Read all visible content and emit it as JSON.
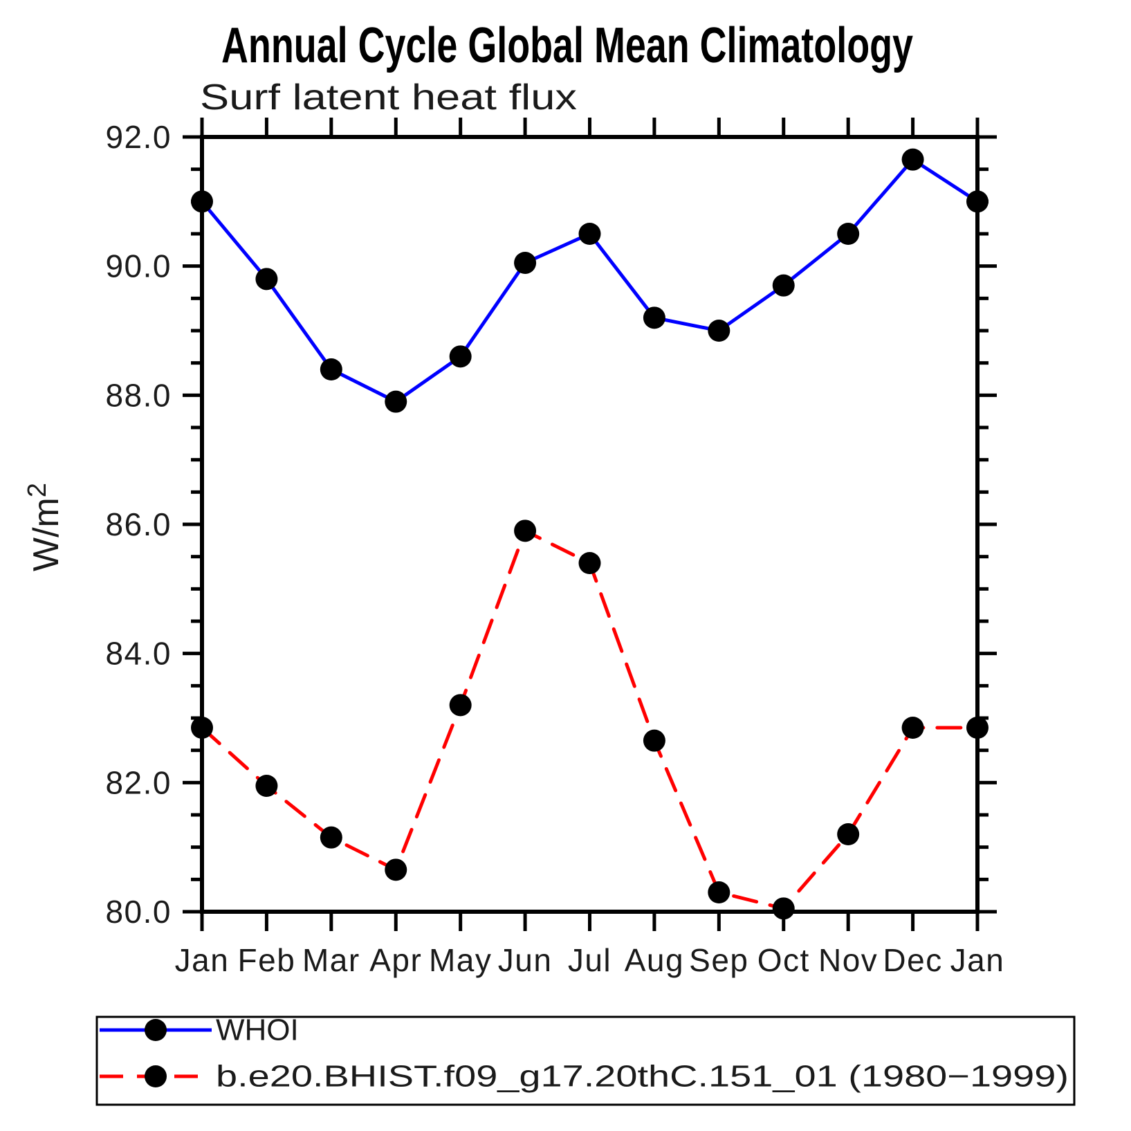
{
  "title": "Annual Cycle Global Mean Climatology",
  "subtitle": "Surf latent heat flux",
  "y_axis": {
    "label": "W/m",
    "label_superscript": "2",
    "tick_labels": [
      "92.0",
      "90.0",
      "88.0",
      "86.0",
      "84.0",
      "82.0",
      "80.0"
    ]
  },
  "x_axis": {
    "tick_labels": [
      "Jan",
      "Feb",
      "Mar",
      "Apr",
      "May",
      "Jun",
      "Jul",
      "Aug",
      "Sep",
      "Oct",
      "Nov",
      "Dec",
      "Jan"
    ]
  },
  "colors": {
    "whoi_line": "#0000ff",
    "model_line": "#ff0000",
    "marker": "#000000",
    "axis": "#000000"
  },
  "chart_data": {
    "type": "line",
    "title": "Annual Cycle Global Mean Climatology",
    "subtitle": "Surf latent heat flux",
    "ylabel": "W/m²",
    "xlabel": "",
    "categories": [
      "Jan",
      "Feb",
      "Mar",
      "Apr",
      "May",
      "Jun",
      "Jul",
      "Aug",
      "Sep",
      "Oct",
      "Nov",
      "Dec",
      "Jan"
    ],
    "series": [
      {
        "name": "WHOI",
        "color": "#0000ff",
        "line_style": "solid",
        "marker": "filled-circle",
        "marker_color": "#000000",
        "values": [
          91.0,
          89.8,
          88.4,
          87.9,
          88.6,
          90.05,
          90.5,
          89.2,
          89.0,
          89.7,
          90.5,
          91.65,
          91.0
        ]
      },
      {
        "name": "b.e20.BHIST.f09_g17.20thC.151_01 (1980−1999)",
        "color": "#ff0000",
        "line_style": "dashed",
        "marker": "filled-circle",
        "marker_color": "#000000",
        "values": [
          82.85,
          81.95,
          81.15,
          80.65,
          83.2,
          85.9,
          85.4,
          82.65,
          80.3,
          80.05,
          81.2,
          82.85,
          82.85
        ]
      }
    ],
    "ylim": [
      80.0,
      92.0
    ],
    "ytick_major_step": 2.0,
    "ytick_minor_step": 0.5,
    "ytick_labels": [
      "92.0",
      "90.0",
      "88.0",
      "86.0",
      "84.0",
      "82.0",
      "80.0"
    ],
    "grid": false,
    "legend_position": "bottom-left-box"
  }
}
